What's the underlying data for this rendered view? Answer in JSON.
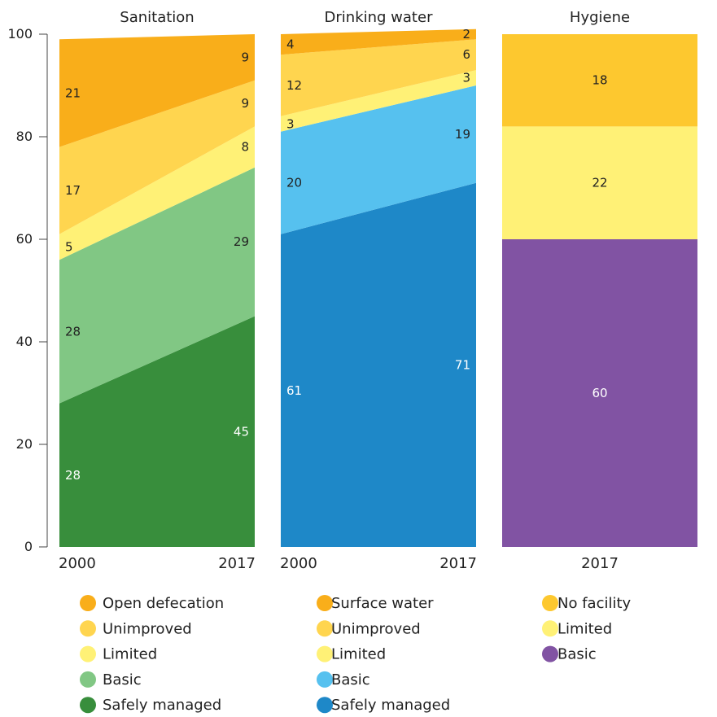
{
  "chart_data": {
    "type": "area",
    "ylim": [
      0,
      100
    ],
    "yticks": [
      0,
      20,
      40,
      60,
      80,
      100
    ],
    "panels": [
      {
        "title": "Sanitation",
        "x": [
          "2000",
          "2017"
        ],
        "series": [
          {
            "name": "Safely managed",
            "values": [
              28,
              45
            ],
            "color": "#388e3c",
            "label_color": "#ffffff"
          },
          {
            "name": "Basic",
            "values": [
              28,
              29
            ],
            "color": "#81c784",
            "label_color": "#222222"
          },
          {
            "name": "Limited",
            "values": [
              5,
              8
            ],
            "color": "#fff176",
            "label_color": "#222222"
          },
          {
            "name": "Unimproved",
            "values": [
              17,
              9
            ],
            "color": "#ffd54f",
            "label_color": "#222222"
          },
          {
            "name": "Open defecation",
            "values": [
              21,
              9
            ],
            "color": "#f9ae1a",
            "label_color": "#222222"
          }
        ]
      },
      {
        "title": "Drinking water",
        "x": [
          "2000",
          "2017"
        ],
        "series": [
          {
            "name": "Safely managed",
            "values": [
              61,
              71
            ],
            "color": "#1e88c8",
            "label_color": "#ffffff"
          },
          {
            "name": "Basic",
            "values": [
              20,
              19
            ],
            "color": "#56c1ef",
            "label_color": "#222222"
          },
          {
            "name": "Limited",
            "values": [
              3,
              3
            ],
            "color": "#fff176",
            "label_color": "#222222"
          },
          {
            "name": "Unimproved",
            "values": [
              12,
              6
            ],
            "color": "#ffd54f",
            "label_color": "#222222"
          },
          {
            "name": "Surface water",
            "values": [
              4,
              2
            ],
            "color": "#f9ae1a",
            "label_color": "#222222"
          }
        ]
      },
      {
        "title": "Hygiene",
        "x": [
          "2017"
        ],
        "series": [
          {
            "name": "Basic",
            "values": [
              60
            ],
            "color": "#8153a3",
            "label_color": "#ffffff"
          },
          {
            "name": "Limited",
            "values": [
              22
            ],
            "color": "#fff176",
            "label_color": "#222222"
          },
          {
            "name": "No facility",
            "values": [
              18
            ],
            "color": "#fdc82f",
            "label_color": "#222222"
          }
        ]
      }
    ]
  }
}
